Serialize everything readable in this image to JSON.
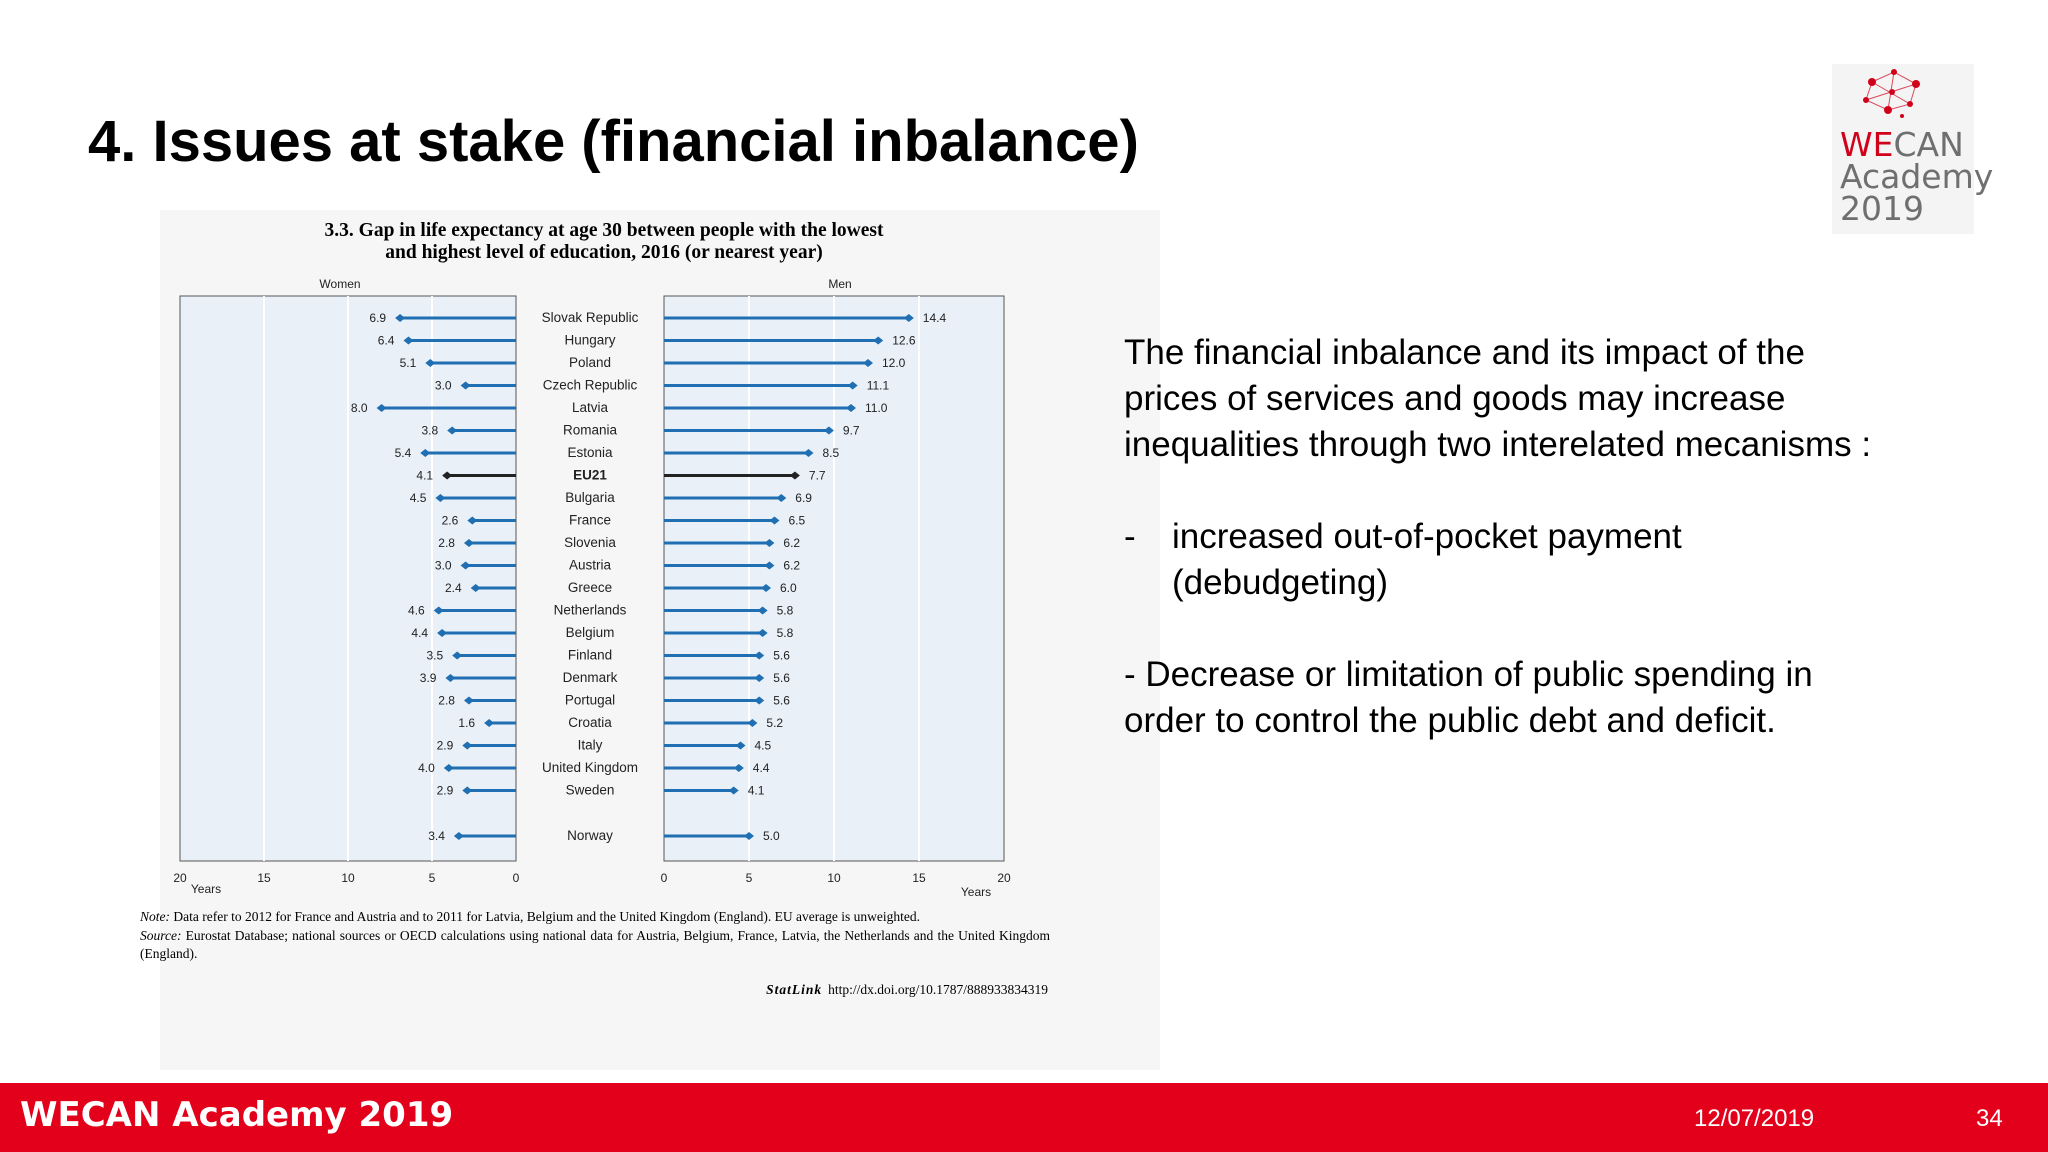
{
  "slide": {
    "title": "4. Issues at stake (financial inbalance)",
    "logo": {
      "we": "WE",
      "can": "CAN",
      "line2": "Academy",
      "line3": "2019"
    },
    "body": {
      "intro": "The financial inbalance and its impact of the prices of services and goods may increase inequalities through two interelated mecanisms :",
      "bullet1_marker": "-",
      "bullet1": "increased out-of-pocket payment (debudgeting)",
      "bullet2": "- Decrease or limitation of public spending in order to control the public debt and deficit."
    },
    "footer": {
      "brand": "WECAN Academy 2019",
      "date": "12/07/2019",
      "page": "34"
    },
    "colors": {
      "footer_bg": "#e2001a",
      "logo_accent": "#d0021b"
    }
  },
  "figure": {
    "title_line1": "3.3. Gap in life expectancy at age 30 between people with the lowest",
    "title_line2": "and highest level of education, 2016 (or nearest year)",
    "note_label": "Note:",
    "note_text": "Data refer to 2012 for France and Austria and to 2011 for Latvia, Belgium and the United Kingdom (England). EU average is unweighted.",
    "source_label": "Source:",
    "source_text": "Eurostat Database; national sources or OECD calculations using national data for Austria, Belgium, France, Latvia, the Netherlands and the United Kingdom (England).",
    "statlink_label": "StatLink",
    "statlink_url": "http://dx.doi.org/10.1787/888933834319"
  },
  "chart_data": {
    "type": "bar",
    "title": "3.3. Gap in life expectancy at age 30 between people with the lowest and highest level of education, 2016 (or nearest year)",
    "panels": [
      "Women",
      "Men"
    ],
    "axis_label": "Years",
    "xlim": [
      0,
      20
    ],
    "ticks": [
      0,
      5,
      10,
      15,
      20
    ],
    "colors": {
      "series": "#1f6fb2",
      "highlight": "#222222",
      "panel_bg": "#e9f0f8",
      "grid": "#ffffff"
    },
    "highlight": "EU21",
    "categories": [
      "Slovak Republic",
      "Hungary",
      "Poland",
      "Czech Republic",
      "Latvia",
      "Romania",
      "Estonia",
      "EU21",
      "Bulgaria",
      "France",
      "Slovenia",
      "Austria",
      "Greece",
      "Netherlands",
      "Belgium",
      "Finland",
      "Denmark",
      "Portugal",
      "Croatia",
      "Italy",
      "United Kingdom",
      "Sweden",
      "Norway"
    ],
    "series": [
      {
        "name": "Women",
        "values": [
          6.9,
          6.4,
          5.1,
          3.0,
          8.0,
          3.8,
          5.4,
          4.1,
          4.5,
          2.6,
          2.8,
          3.0,
          2.4,
          4.6,
          4.4,
          3.5,
          3.9,
          2.8,
          1.6,
          2.9,
          4.0,
          2.9,
          3.4
        ]
      },
      {
        "name": "Men",
        "values": [
          14.4,
          12.6,
          12.0,
          11.1,
          11.0,
          9.7,
          8.5,
          7.7,
          6.9,
          6.5,
          6.2,
          6.2,
          6.0,
          5.8,
          5.8,
          5.6,
          5.6,
          5.6,
          5.2,
          4.5,
          4.4,
          4.1,
          5.0
        ]
      }
    ]
  }
}
